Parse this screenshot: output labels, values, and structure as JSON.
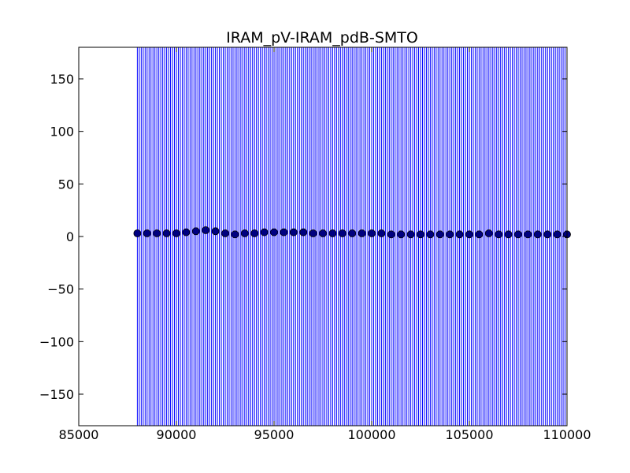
{
  "chart_data": {
    "type": "scatter",
    "title": "IRAM_pV-IRAM_pdB-SMTO",
    "xlabel": "",
    "ylabel": "",
    "xlim": [
      85000,
      110000
    ],
    "ylim": [
      -180,
      180
    ],
    "x_ticks": [
      "85000",
      "90000",
      "95000",
      "100000",
      "105000",
      "110000"
    ],
    "y_ticks": [
      "150",
      "100",
      "50",
      "0",
      "−50",
      "−100",
      "−150"
    ],
    "grid": false,
    "legend": "none",
    "colors": {
      "lines": "#0000ff",
      "markers": "#000080",
      "axes": "#000000",
      "background": "#ffffff"
    },
    "vertical_lines": {
      "x_start": 88000,
      "x_end": 110000,
      "step": 100,
      "y_range": [
        -180,
        180
      ]
    },
    "series": [
      {
        "x": [
          88000,
          88500,
          89000,
          89500,
          90000,
          90500,
          91000,
          91500,
          92000,
          92500,
          93000,
          93500,
          94000,
          94500,
          95000,
          95500,
          96000,
          96500,
          97000,
          97500,
          98000,
          98500,
          99000,
          99500,
          100000,
          100500,
          101000,
          101500,
          102000,
          102500,
          103000,
          103500,
          104000,
          104500,
          105000,
          105500,
          106000,
          106500,
          107000,
          107500,
          108000,
          108500,
          109000,
          109500,
          110000
        ],
        "y": [
          3,
          3,
          3,
          3,
          3,
          4,
          5,
          6,
          5,
          3,
          2,
          3,
          3,
          4,
          4,
          4,
          4,
          4,
          3,
          3,
          3,
          3,
          3,
          3,
          3,
          3,
          2,
          2,
          2,
          2,
          2,
          2,
          2,
          2,
          2,
          2,
          3,
          2,
          2,
          2,
          2,
          2,
          2,
          2,
          2
        ]
      }
    ]
  }
}
